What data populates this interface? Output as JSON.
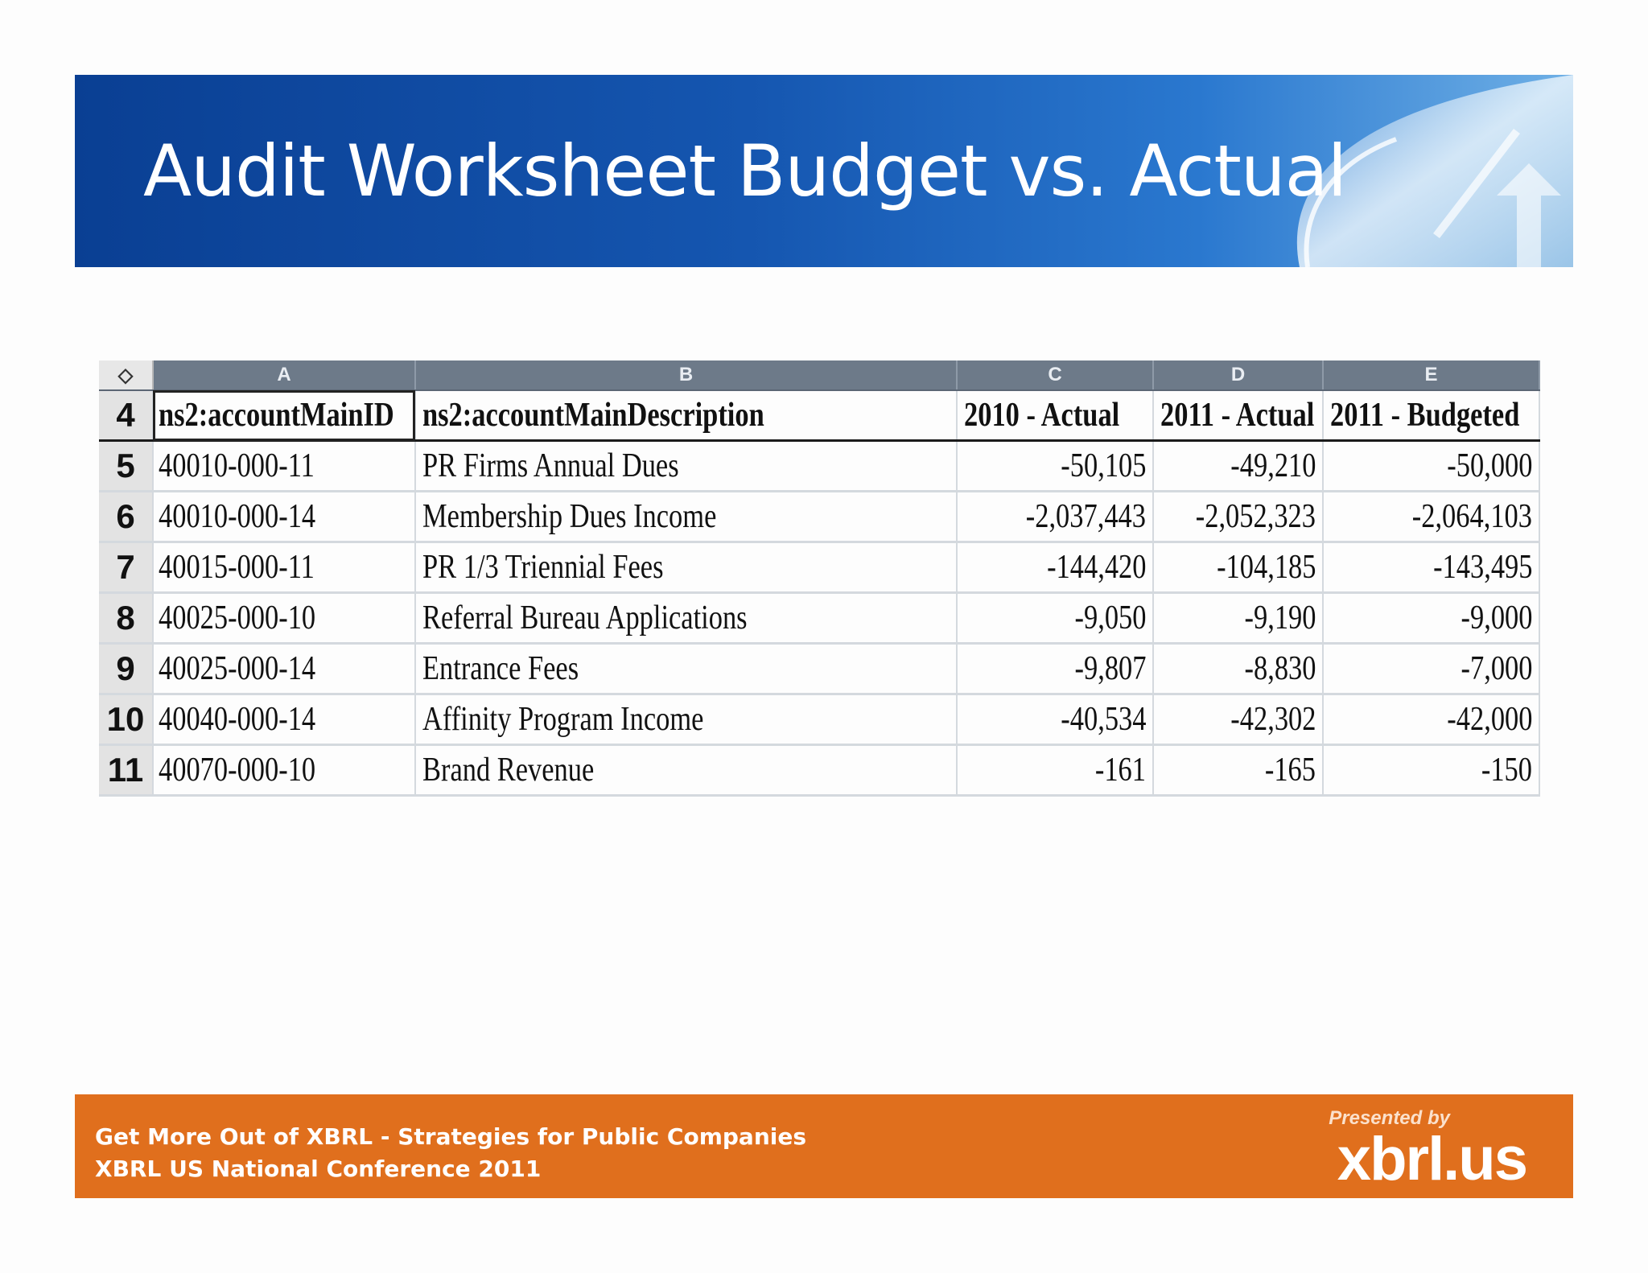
{
  "slide": {
    "title": "Audit Worksheet Budget vs. Actual"
  },
  "sheet": {
    "corner_icon": "diamond-icon",
    "column_letters": [
      "A",
      "B",
      "C",
      "D",
      "E"
    ],
    "header_row": {
      "row_number": "4",
      "cells": [
        "ns2:accountMainID",
        "ns2:accountMainDescription",
        "2010 - Actual",
        "2011 - Actual",
        "2011 - Budgeted"
      ]
    },
    "rows": [
      {
        "row_number": "5",
        "id": "40010-000-11",
        "description": "PR Firms Annual Dues",
        "actual_2010": "-50,105",
        "actual_2011": "-49,210",
        "budgeted_2011": "-50,000"
      },
      {
        "row_number": "6",
        "id": "40010-000-14",
        "description": "Membership Dues Income",
        "actual_2010": "-2,037,443",
        "actual_2011": "-2,052,323",
        "budgeted_2011": "-2,064,103"
      },
      {
        "row_number": "7",
        "id": "40015-000-11",
        "description": "PR 1/3 Triennial Fees",
        "actual_2010": "-144,420",
        "actual_2011": "-104,185",
        "budgeted_2011": "-143,495"
      },
      {
        "row_number": "8",
        "id": "40025-000-10",
        "description": "Referral Bureau Applications",
        "actual_2010": "-9,050",
        "actual_2011": "-9,190",
        "budgeted_2011": "-9,000"
      },
      {
        "row_number": "9",
        "id": "40025-000-14",
        "description": "Entrance Fees",
        "actual_2010": "-9,807",
        "actual_2011": "-8,830",
        "budgeted_2011": "-7,000"
      },
      {
        "row_number": "10",
        "id": "40040-000-14",
        "description": "Affinity Program Income",
        "actual_2010": "-40,534",
        "actual_2011": "-42,302",
        "budgeted_2011": "-42,000"
      },
      {
        "row_number": "11",
        "id": "40070-000-10",
        "description": "Brand Revenue",
        "actual_2010": "-161",
        "actual_2011": "-165",
        "budgeted_2011": "-150"
      }
    ]
  },
  "footer": {
    "line1": "Get More Out of XBRL - Strategies for Public Companies",
    "line2": "XBRL US National Conference 2011",
    "presented_by": "Presented by",
    "brand": "xbrl.us"
  },
  "colors": {
    "banner_blue": "#1556b0",
    "footer_orange": "#e06f1d",
    "column_header_gray": "#6d7a89"
  }
}
